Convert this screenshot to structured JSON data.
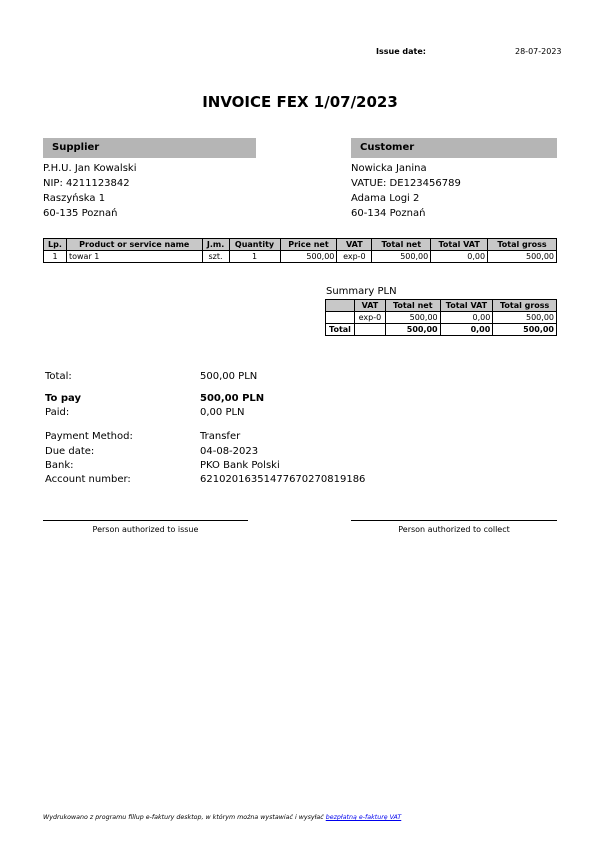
{
  "issue_date": {
    "label": "Issue date:",
    "value": "28-07-2023"
  },
  "title": "INVOICE FEX 1/07/2023",
  "supplier": {
    "heading": "Supplier",
    "lines": [
      "P.H.U. Jan Kowalski",
      "NIP: 4211123842",
      "Raszyńska 1",
      "60-135 Poznań"
    ]
  },
  "customer": {
    "heading": "Customer",
    "lines": [
      "Nowicka Janina",
      "VATUE: DE123456789",
      "Adama Logi 2",
      "60-134 Poznań"
    ]
  },
  "items": {
    "headers": [
      "Lp.",
      "Product or service name",
      "J.m.",
      "Quantity",
      "Price net",
      "VAT",
      "Total net",
      "Total VAT",
      "Total gross"
    ],
    "rows": [
      [
        "1",
        "towar 1",
        "szt.",
        "1",
        "500,00",
        "exp-0",
        "500,00",
        "0,00",
        "500,00"
      ]
    ]
  },
  "summary": {
    "title": "Summary PLN",
    "headers": [
      "",
      "VAT",
      "Total net",
      "Total VAT",
      "Total gross"
    ],
    "rows": [
      [
        "",
        "exp-0",
        "500,00",
        "0,00",
        "500,00"
      ]
    ],
    "total": [
      "Total",
      "",
      "500,00",
      "0,00",
      "500,00"
    ]
  },
  "totals": {
    "total_label": "Total:",
    "total_value": "500,00 PLN",
    "to_pay_label": "To pay",
    "to_pay_value": "500,00 PLN",
    "paid_label": "Paid:",
    "paid_value": "0,00 PLN",
    "method_label": "Payment Method:",
    "method_value": "Transfer",
    "due_label": "Due date:",
    "due_value": "04-08-2023",
    "bank_label": "Bank:",
    "bank_value": "PKO Bank Polski",
    "account_label": "Account number:",
    "account_value": "62102016351477670270819186"
  },
  "signatures": {
    "issue": "Person authorized to issue",
    "collect": "Person authorized to collect"
  },
  "footer": {
    "text": "Wydrukowano z programu fillup e-faktury desktop, w którym można wystawiać i wysyłać ",
    "link": "bezpłatną e-fakturę VAT",
    "link_color": "#0000ee"
  }
}
